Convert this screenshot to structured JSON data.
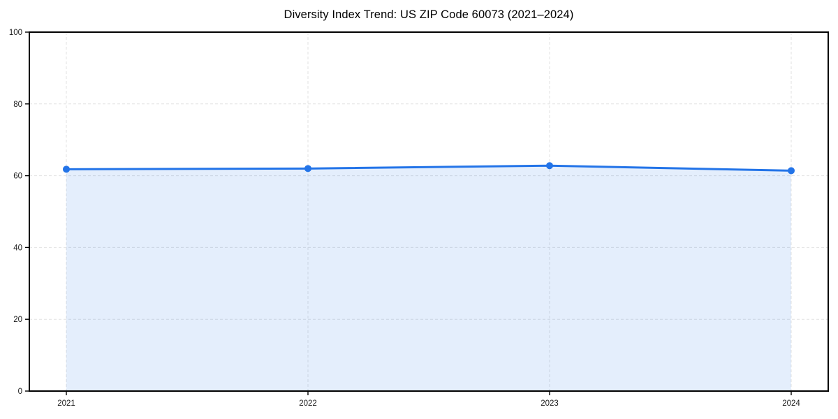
{
  "page": {
    "background_color": "#ffffff"
  },
  "chart_data": {
    "type": "line",
    "title": "Diversity Index Trend: US ZIP Code 60073 (2021–2024)",
    "x": [
      2021,
      2022,
      2023,
      2024
    ],
    "xtick_labels": [
      "2021",
      "2022",
      "2023",
      "2024"
    ],
    "series": [
      {
        "name": "Diversity Index",
        "values": [
          61.8,
          62.0,
          62.8,
          61.4
        ]
      }
    ],
    "xlabel": "",
    "ylabel": "",
    "ylim": [
      0,
      100
    ],
    "yticks": [
      0,
      20,
      40,
      60,
      80,
      100
    ],
    "grid": true,
    "grid_style": "dashed",
    "area_fill": true,
    "legend": "none",
    "line_color": "#2374e8",
    "marker_color": "#2374e8",
    "fill_color": "rgba(35,116,232,0.12)",
    "grid_color": "#e2e2e2",
    "axis_color": "#000000",
    "tick_label_color": "#1a1a1a",
    "title_color": "#000000"
  }
}
